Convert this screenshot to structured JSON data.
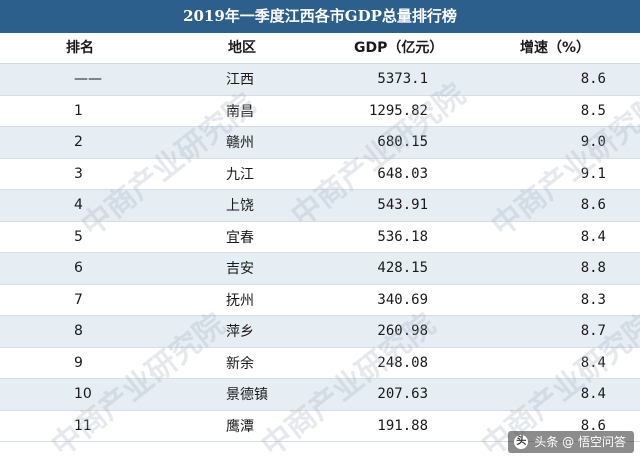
{
  "title": "2019年一季度江西各市GDP总量排行榜",
  "headers": {
    "rank": "排名",
    "region": "地区",
    "gdp": "GDP（亿元）",
    "rate": "增速（%）"
  },
  "rows": [
    {
      "rank": "——",
      "region": "江西",
      "gdp": "5373.1",
      "rate": "8.6"
    },
    {
      "rank": "1",
      "region": "南昌",
      "gdp": "1295.82",
      "rate": "8.5"
    },
    {
      "rank": "2",
      "region": "赣州",
      "gdp": "680.15",
      "rate": "9.0"
    },
    {
      "rank": "3",
      "region": "九江",
      "gdp": "648.03",
      "rate": "9.1"
    },
    {
      "rank": "4",
      "region": "上饶",
      "gdp": "543.91",
      "rate": "8.6"
    },
    {
      "rank": "5",
      "region": "宜春",
      "gdp": "536.18",
      "rate": "8.4"
    },
    {
      "rank": "6",
      "region": "吉安",
      "gdp": "428.15",
      "rate": "8.8"
    },
    {
      "rank": "7",
      "region": "抚州",
      "gdp": "340.69",
      "rate": "8.3"
    },
    {
      "rank": "8",
      "region": "萍乡",
      "gdp": "260.98",
      "rate": "8.7"
    },
    {
      "rank": "9",
      "region": "新余",
      "gdp": "248.08",
      "rate": "8.4"
    },
    {
      "rank": "10",
      "region": "景德镇",
      "gdp": "207.63",
      "rate": "8.4"
    },
    {
      "rank": "11",
      "region": "鹰潭",
      "gdp": "191.88",
      "rate": "8.6"
    }
  ],
  "watermark": "中商产业研究院",
  "badge": {
    "icon_glyph": "头",
    "text": "头条 @ 悟空问答"
  },
  "colors": {
    "title_bg": "#2c5f8c",
    "stripe": "#e6edf3"
  }
}
